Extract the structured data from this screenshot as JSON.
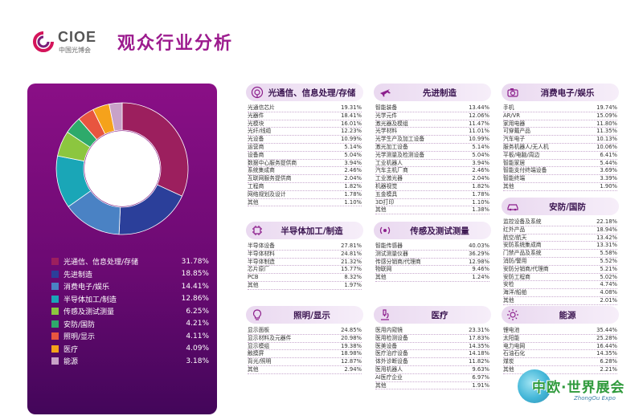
{
  "header": {
    "logo_text": "CIOE",
    "logo_sub": "中国光博会",
    "title": "观众行业分析"
  },
  "colors": {
    "purple": "#8a0f86",
    "dark_purple": "#43065a",
    "accent": "#9c1b8e"
  },
  "summary": {
    "items": [
      {
        "label": "光通信、信息处理/存储",
        "value": "31.78%",
        "pct": 31.78,
        "color": "#9c1f5e"
      },
      {
        "label": "先进制造",
        "value": "18.85%",
        "pct": 18.85,
        "color": "#2b3f9a"
      },
      {
        "label": "消费电子/娱乐",
        "value": "14.41%",
        "pct": 14.41,
        "color": "#4a82c4"
      },
      {
        "label": "半导体加工/制造",
        "value": "12.86%",
        "pct": 12.86,
        "color": "#1aa6b7"
      },
      {
        "label": "传感及测试测量",
        "value": "6.25%",
        "pct": 6.25,
        "color": "#8cc63f"
      },
      {
        "label": "安防/国防",
        "value": "4.21%",
        "pct": 4.21,
        "color": "#2eaa6b"
      },
      {
        "label": "照明/显示",
        "value": "4.11%",
        "pct": 4.11,
        "color": "#e8553f"
      },
      {
        "label": "医疗",
        "value": "4.09%",
        "pct": 4.09,
        "color": "#f5a21b"
      },
      {
        "label": "能源",
        "value": "3.18%",
        "pct": 3.18,
        "color": "#c8a2c8"
      }
    ]
  },
  "cards": [
    {
      "title": "光通信、信息处理/存储",
      "icon": "satellite-dish-icon",
      "rows": [
        {
          "name": "光通信芯片",
          "value": "19.31%"
        },
        {
          "name": "光器件",
          "value": "18.41%"
        },
        {
          "name": "光模块",
          "value": "16.01%"
        },
        {
          "name": "光纤/线缆",
          "value": "12.23%"
        },
        {
          "name": "光设备",
          "value": "10.99%"
        },
        {
          "name": "运营商",
          "value": "5.14%"
        },
        {
          "name": "设备商",
          "value": "5.04%"
        },
        {
          "name": "数据中心服务提供商",
          "value": "3.94%"
        },
        {
          "name": "系统集成商",
          "value": "2.46%"
        },
        {
          "name": "互联网服务提供商",
          "value": "2.04%"
        },
        {
          "name": "工程商",
          "value": "1.82%"
        },
        {
          "name": "网络规划及设计",
          "value": "1.78%"
        },
        {
          "name": "其他",
          "value": "1.10%"
        }
      ]
    },
    {
      "title": "先进制造",
      "icon": "airplane-icon",
      "rows": [
        {
          "name": "智能装备",
          "value": "13.44%"
        },
        {
          "name": "光学元件",
          "value": "12.06%"
        },
        {
          "name": "激光器及模组",
          "value": "11.47%"
        },
        {
          "name": "光学材料",
          "value": "11.01%"
        },
        {
          "name": "光学生产及加工设备",
          "value": "10.99%"
        },
        {
          "name": "激光加工设备",
          "value": "5.14%"
        },
        {
          "name": "光学测量及检测设备",
          "value": "5.04%"
        },
        {
          "name": "工业机器人",
          "value": "3.94%"
        },
        {
          "name": "汽车主机厂商",
          "value": "2.46%"
        },
        {
          "name": "工业激光器",
          "value": "2.04%"
        },
        {
          "name": "机器视觉",
          "value": "1.82%"
        },
        {
          "name": "五金模具",
          "value": "1.78%"
        },
        {
          "name": "3D打印",
          "value": "1.10%"
        },
        {
          "name": "其他",
          "value": "1.38%"
        }
      ]
    },
    {
      "title": "消费电子/娱乐",
      "icon": "camera-icon",
      "rows": [
        {
          "name": "手机",
          "value": "19.74%"
        },
        {
          "name": "AR/VR",
          "value": "15.09%"
        },
        {
          "name": "家用电器",
          "value": "11.80%"
        },
        {
          "name": "可穿戴产品",
          "value": "11.35%"
        },
        {
          "name": "汽车电子",
          "value": "10.13%"
        },
        {
          "name": "服务机器人/无人机",
          "value": "10.06%"
        },
        {
          "name": "平板/电脑/周边",
          "value": "6.41%"
        },
        {
          "name": "智能家居",
          "value": "5.44%"
        },
        {
          "name": "智能支付终端设备",
          "value": "3.69%"
        },
        {
          "name": "智能终端",
          "value": "3.39%"
        },
        {
          "name": "其他",
          "value": "1.90%"
        }
      ]
    },
    {
      "title": "半导体加工/制造",
      "icon": "chip-icon",
      "rows": [
        {
          "name": "半导体设备",
          "value": "27.81%"
        },
        {
          "name": "半导体材料",
          "value": "24.81%"
        },
        {
          "name": "半导体制造",
          "value": "21.32%"
        },
        {
          "name": "芯片原厂",
          "value": "15.77%"
        },
        {
          "name": "PCB",
          "value": "8.32%"
        },
        {
          "name": "其他",
          "value": "1.97%"
        }
      ]
    },
    {
      "title": "传感及测试测量",
      "icon": "sensor-icon",
      "rows": [
        {
          "name": "智能传感器",
          "value": "40.03%"
        },
        {
          "name": "测试测量仪器",
          "value": "36.29%"
        },
        {
          "name": "传感分销商/代理商",
          "value": "12.98%"
        },
        {
          "name": "物联网",
          "value": "9.46%"
        },
        {
          "name": "其他",
          "value": "1.24%"
        }
      ]
    },
    {
      "title": "安防/国防",
      "icon": "car-icon",
      "rows": [
        {
          "name": "监控设备及系统",
          "value": "22.18%"
        },
        {
          "name": "红外产品",
          "value": "18.94%"
        },
        {
          "name": "航空/航天",
          "value": "13.42%"
        },
        {
          "name": "安防系统集成商",
          "value": "13.31%"
        },
        {
          "name": "门禁产品及系统",
          "value": "5.58%"
        },
        {
          "name": "消防/警用",
          "value": "5.52%"
        },
        {
          "name": "安防分销商/代理商",
          "value": "5.21%"
        },
        {
          "name": "安防工程商",
          "value": "5.02%"
        },
        {
          "name": "安检",
          "value": "4.74%"
        },
        {
          "name": "海洋/船舶",
          "value": "4.08%"
        },
        {
          "name": "其他",
          "value": "2.01%"
        }
      ]
    },
    {
      "title": "照明/显示",
      "icon": "lightbulb-icon",
      "rows": [
        {
          "name": "显示面板",
          "value": "24.85%"
        },
        {
          "name": "显示材料及元器件",
          "value": "20.98%"
        },
        {
          "name": "显示模组",
          "value": "19.38%"
        },
        {
          "name": "触摸屏",
          "value": "18.98%"
        },
        {
          "name": "背光/照明",
          "value": "12.87%"
        },
        {
          "name": "其他",
          "value": "2.94%"
        }
      ]
    },
    {
      "title": "医疗",
      "icon": "microscope-icon",
      "rows": [
        {
          "name": "医用内窥镜",
          "value": "23.31%"
        },
        {
          "name": "医用检测设备",
          "value": "17.83%"
        },
        {
          "name": "医美设备",
          "value": "14.35%"
        },
        {
          "name": "医疗治疗设备",
          "value": "14.18%"
        },
        {
          "name": "体外诊断设备",
          "value": "11.82%"
        },
        {
          "name": "医用机器人",
          "value": "9.63%"
        },
        {
          "name": "AI医疗企业",
          "value": "6.97%"
        },
        {
          "name": "其他",
          "value": "1.91%"
        }
      ]
    },
    {
      "title": "能源",
      "icon": "sun-icon",
      "rows": [
        {
          "name": "锂电池",
          "value": "35.44%"
        },
        {
          "name": "太阳能",
          "value": "25.28%"
        },
        {
          "name": "电力电网",
          "value": "16.44%"
        },
        {
          "name": "石油石化",
          "value": "14.35%"
        },
        {
          "name": "煤炭",
          "value": "6.28%"
        },
        {
          "name": "其他",
          "value": "2.21%"
        }
      ]
    }
  ],
  "watermark": {
    "text": "中欧·世界展会",
    "sub": "ZhongOu Expo"
  }
}
